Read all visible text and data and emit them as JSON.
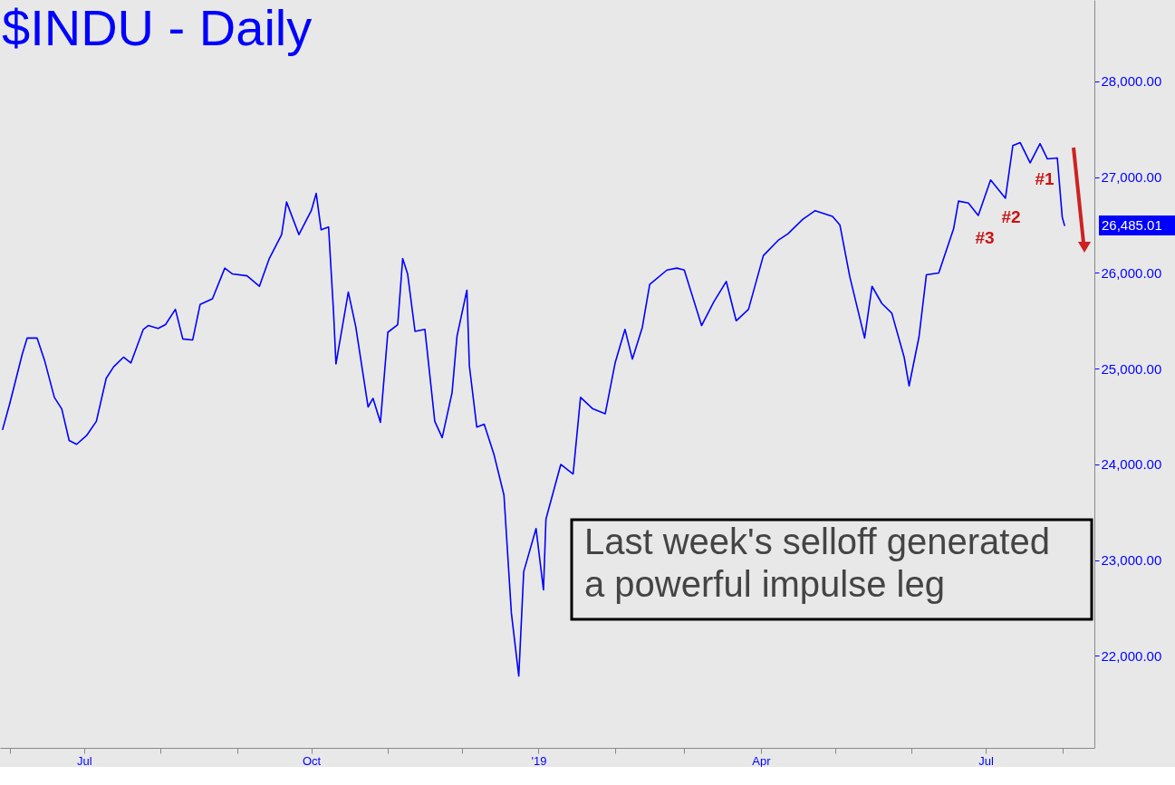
{
  "chart_data": {
    "type": "line",
    "title": "$INDU - Daily",
    "x": [
      "2018-05-29",
      "2018-06-01",
      "2018-06-06",
      "2018-06-08",
      "2018-06-12",
      "2018-06-15",
      "2018-06-19",
      "2018-06-22",
      "2018-06-25",
      "2018-06-28",
      "2018-07-02",
      "2018-07-06",
      "2018-07-10",
      "2018-07-13",
      "2018-07-17",
      "2018-07-20",
      "2018-07-25",
      "2018-07-27",
      "2018-07-31",
      "2018-08-03",
      "2018-08-07",
      "2018-08-10",
      "2018-08-14",
      "2018-08-17",
      "2018-08-22",
      "2018-08-27",
      "2018-08-30",
      "2018-09-05",
      "2018-09-10",
      "2018-09-14",
      "2018-09-19",
      "2018-09-21",
      "2018-09-26",
      "2018-10-01",
      "2018-10-03",
      "2018-10-05",
      "2018-10-08",
      "2018-10-10",
      "2018-10-11",
      "2018-10-16",
      "2018-10-19",
      "2018-10-24",
      "2018-10-26",
      "2018-10-29",
      "2018-11-01",
      "2018-11-05",
      "2018-11-07",
      "2018-11-09",
      "2018-11-12",
      "2018-11-16",
      "2018-11-20",
      "2018-11-23",
      "2018-11-27",
      "2018-11-29",
      "2018-12-03",
      "2018-12-04",
      "2018-12-07",
      "2018-12-10",
      "2018-12-14",
      "2018-12-18",
      "2018-12-20",
      "2018-12-21",
      "2018-12-24",
      "2018-12-26",
      "2018-12-28",
      "2018-12-31",
      "2019-01-03",
      "2019-01-04",
      "2019-01-10",
      "2019-01-15",
      "2019-01-18",
      "2019-01-23",
      "2019-01-28",
      "2019-02-01",
      "2019-02-05",
      "2019-02-08",
      "2019-02-12",
      "2019-02-15",
      "2019-02-22",
      "2019-02-26",
      "2019-03-01",
      "2019-03-08",
      "2019-03-13",
      "2019-03-18",
      "2019-03-22",
      "2019-03-27",
      "2019-04-02",
      "2019-04-08",
      "2019-04-12",
      "2019-04-18",
      "2019-04-23",
      "2019-04-30",
      "2019-05-03",
      "2019-05-07",
      "2019-05-13",
      "2019-05-16",
      "2019-05-20",
      "2019-05-24",
      "2019-05-29",
      "2019-05-31",
      "2019-06-04",
      "2019-06-07",
      "2019-06-12",
      "2019-06-18",
      "2019-06-20",
      "2019-06-24",
      "2019-06-28",
      "2019-07-03",
      "2019-07-09",
      "2019-07-12",
      "2019-07-15",
      "2019-07-19",
      "2019-07-23",
      "2019-07-26",
      "2019-07-30",
      "2019-08-01",
      "2019-08-02"
    ],
    "series": [
      {
        "color": "#0000ff",
        "values": [
          24360,
          24640,
          25150,
          25320,
          25320,
          25090,
          24700,
          24580,
          24250,
          24210,
          24300,
          24450,
          24900,
          25020,
          25120,
          25060,
          25410,
          25450,
          25420,
          25460,
          25620,
          25310,
          25300,
          25670,
          25730,
          26050,
          25990,
          25970,
          25860,
          26150,
          26400,
          26740,
          26400,
          26650,
          26830,
          26450,
          26480,
          25600,
          25050,
          25800,
          25440,
          24600,
          24690,
          24440,
          25380,
          25460,
          26150,
          25990,
          25390,
          25410,
          24450,
          24280,
          24750,
          25340,
          25820,
          25030,
          24390,
          24420,
          24100,
          23680,
          22860,
          22450,
          21790,
          22880,
          23060,
          23330,
          22690,
          23430,
          24000,
          23900,
          24700,
          24580,
          24530,
          25060,
          25410,
          25100,
          25430,
          25880,
          26030,
          26050,
          26030,
          25450,
          25700,
          25910,
          25500,
          25620,
          26180,
          26340,
          26410,
          26560,
          26650,
          26590,
          26500,
          25960,
          25320,
          25860,
          25680,
          25580,
          25120,
          24820,
          25330,
          25980,
          26000,
          26460,
          26750,
          26730,
          26600,
          26970,
          26780,
          27330,
          27360,
          27150,
          27350,
          27190,
          27200,
          26580,
          26490
        ]
      }
    ],
    "xlim": [
      "2018-05-28",
      "2019-08-14"
    ],
    "xticks": [
      {
        "value": "2018-06-01",
        "label": null
      },
      {
        "value": "2018-07-01",
        "label": "Jul"
      },
      {
        "value": "2018-08-01",
        "label": null
      },
      {
        "value": "2018-09-01",
        "label": null
      },
      {
        "value": "2018-10-01",
        "label": "Oct"
      },
      {
        "value": "2018-11-01",
        "label": null
      },
      {
        "value": "2018-12-01",
        "label": null
      },
      {
        "value": "2019-01-01",
        "label": "'19"
      },
      {
        "value": "2019-02-01",
        "label": null
      },
      {
        "value": "2019-03-01",
        "label": null
      },
      {
        "value": "2019-04-01",
        "label": "Apr"
      },
      {
        "value": "2019-05-01",
        "label": null
      },
      {
        "value": "2019-06-01",
        "label": null
      },
      {
        "value": "2019-07-01",
        "label": "Jul"
      },
      {
        "value": "2019-08-01",
        "label": null
      }
    ],
    "ylim": [
      21040,
      28850
    ],
    "yticks": [
      {
        "value": 22000,
        "label": "22,000.00"
      },
      {
        "value": 23000,
        "label": "23,000.00"
      },
      {
        "value": 24000,
        "label": "24,000.00"
      },
      {
        "value": 25000,
        "label": "25,000.00"
      },
      {
        "value": 26000,
        "label": "26,000.00"
      },
      {
        "value": 27000,
        "label": "27,000.00"
      },
      {
        "value": 28000,
        "label": "28,000.00"
      }
    ],
    "annotations": [
      "#1",
      "#2",
      "#3",
      "26,485.01",
      "Last week's selloff generated\na powerful impulse leg"
    ],
    "line_style": "solid"
  }
}
